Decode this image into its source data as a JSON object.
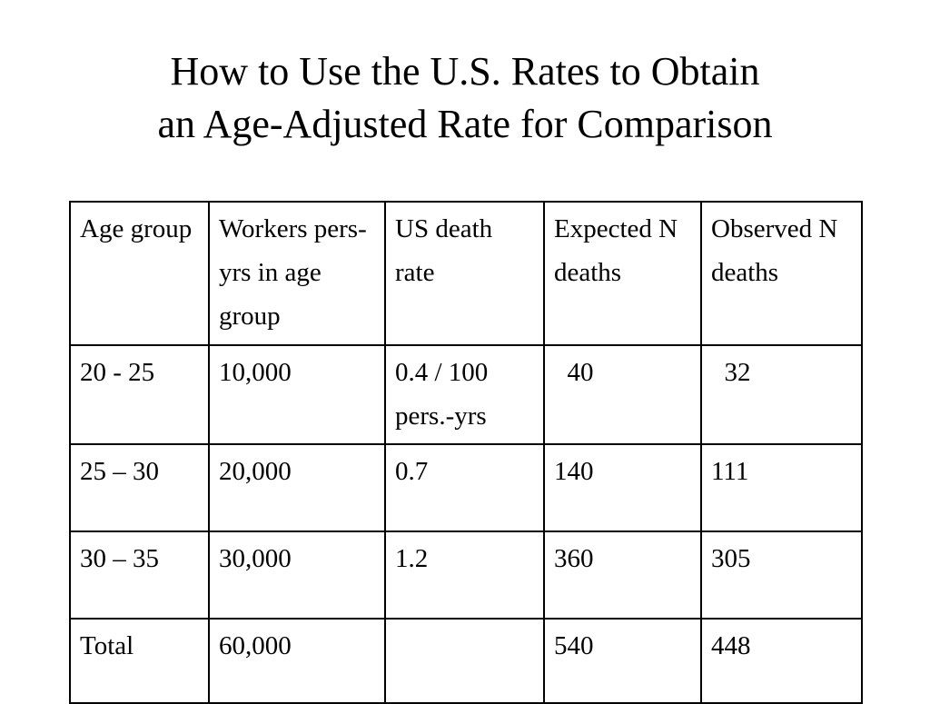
{
  "slide": {
    "title_line1": "How to Use the U.S. Rates to Obtain",
    "title_line2": "an Age-Adjusted Rate for Comparison"
  },
  "table": {
    "headers": [
      "Age group",
      "Workers pers-yrs in age group",
      "US death rate",
      "Expected N deaths",
      "Observed N deaths"
    ],
    "rows": [
      [
        "20 - 25",
        "10,000",
        "0.4 / 100 pers.-yrs",
        "  40",
        "  32"
      ],
      [
        "25 – 30",
        "20,000",
        "0.7",
        "140",
        "111"
      ],
      [
        "30 – 35",
        "30,000",
        "1.2",
        "360",
        "305"
      ],
      [
        "Total",
        "60,000",
        "",
        "540",
        "448"
      ]
    ]
  }
}
